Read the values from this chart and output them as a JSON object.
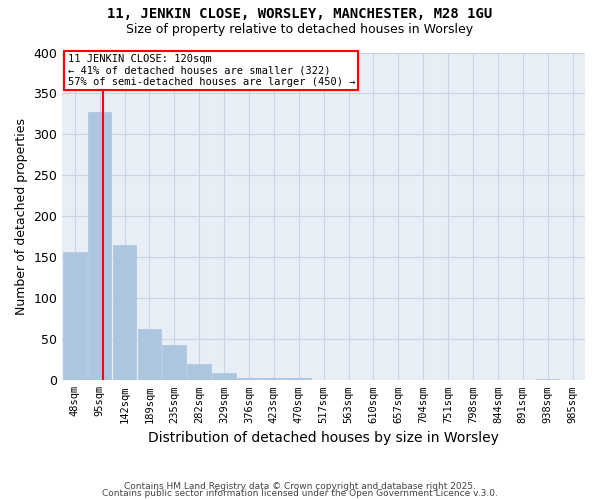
{
  "title1": "11, JENKIN CLOSE, WORSLEY, MANCHESTER, M28 1GU",
  "title2": "Size of property relative to detached houses in Worsley",
  "xlabel": "Distribution of detached houses by size in Worsley",
  "ylabel": "Number of detached properties",
  "bin_labels": [
    "48sqm",
    "95sqm",
    "142sqm",
    "189sqm",
    "235sqm",
    "282sqm",
    "329sqm",
    "376sqm",
    "423sqm",
    "470sqm",
    "517sqm",
    "563sqm",
    "610sqm",
    "657sqm",
    "704sqm",
    "751sqm",
    "798sqm",
    "844sqm",
    "891sqm",
    "938sqm",
    "985sqm"
  ],
  "bar_values": [
    157,
    328,
    165,
    63,
    43,
    20,
    9,
    3,
    3,
    3,
    0,
    0,
    0,
    0,
    0,
    0,
    0,
    0,
    0,
    2,
    0
  ],
  "bar_color": "#adc6e0",
  "bar_edgecolor": "#adc6e0",
  "grid_color": "#c8d4e0",
  "background_color": "#e8eef5",
  "red_line_x": 1.15,
  "annotation_title": "11 JENKIN CLOSE: 120sqm",
  "annotation_line1": "← 41% of detached houses are smaller (322)",
  "annotation_line2": "57% of semi-detached houses are larger (450) →",
  "ylim": [
    0,
    400
  ],
  "yticks": [
    0,
    50,
    100,
    150,
    200,
    250,
    300,
    350,
    400
  ],
  "footer1": "Contains HM Land Registry data © Crown copyright and database right 2025.",
  "footer2": "Contains public sector information licensed under the Open Government Licence v.3.0."
}
